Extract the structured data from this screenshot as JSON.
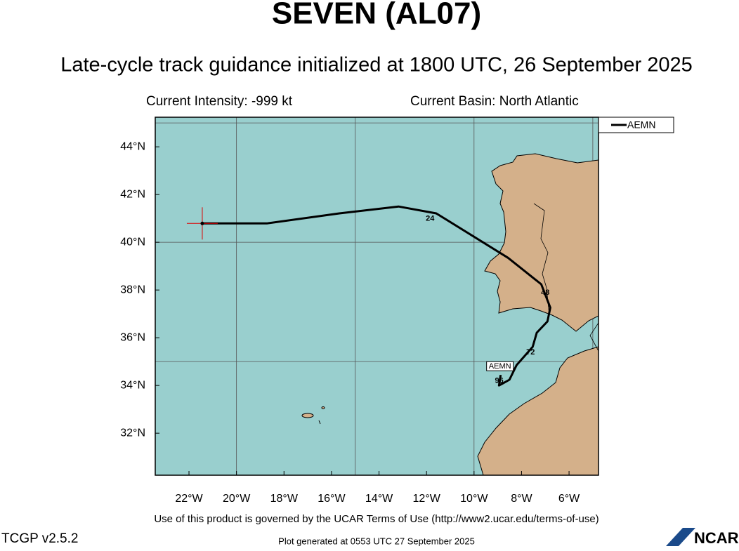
{
  "chart_data": {
    "type": "track",
    "title": "SEVEN (AL07)",
    "subtitle": "Late-cycle track guidance initialized at 1800 UTC, 26 September 2025",
    "intensity_text": "Current Intensity: -999 kt",
    "basin_text": "Current Basin: North Atlantic",
    "xlim": [
      -23.42,
      -4.76
    ],
    "ylim": [
      30.24,
      45.24
    ],
    "xticks": [
      {
        "value": -22,
        "label": "22°W"
      },
      {
        "value": -20,
        "label": "20°W"
      },
      {
        "value": -18,
        "label": "18°W"
      },
      {
        "value": -16,
        "label": "16°W"
      },
      {
        "value": -14,
        "label": "14°W"
      },
      {
        "value": -12,
        "label": "12°W"
      },
      {
        "value": -10,
        "label": "10°W"
      },
      {
        "value": -8,
        "label": "8°W"
      },
      {
        "value": -6,
        "label": "6°W"
      }
    ],
    "yticks": [
      {
        "value": 32,
        "label": "32°N"
      },
      {
        "value": 34,
        "label": "34°N"
      },
      {
        "value": 36,
        "label": "36°N"
      },
      {
        "value": 38,
        "label": "38°N"
      },
      {
        "value": 40,
        "label": "40°N"
      },
      {
        "value": 42,
        "label": "42°N"
      },
      {
        "value": 44,
        "label": "44°N"
      }
    ],
    "grid_lon": [
      -20,
      -15,
      -10,
      -5
    ],
    "grid_lat": [
      35,
      40,
      45
    ],
    "series": [
      {
        "name": "AEMN",
        "color": "#000000",
        "x": [
          -21.44,
          -18.72,
          -15.67,
          -13.18,
          -11.59,
          -8.57,
          -7.17,
          -6.79,
          -6.91,
          -7.36,
          -7.53,
          -8.21,
          -8.51,
          -8.78,
          -8.95,
          -8.88
        ],
        "y": [
          40.79,
          40.79,
          41.21,
          41.5,
          41.21,
          39.35,
          38.24,
          37.26,
          36.68,
          36.21,
          35.62,
          34.85,
          34.24,
          34.09,
          34.0,
          34.44
        ]
      }
    ],
    "hour_labels": {
      "x": [
        -11.85,
        -7.0,
        -7.62,
        -8.94
      ],
      "y": [
        40.98,
        37.88,
        35.38,
        34.2
      ],
      "labels": [
        24,
        48,
        72,
        96
      ]
    },
    "storm_label": "AEMN",
    "terms_text": "Use of this product is governed by the UCAR Terms of Use (http://www2.ucar.edu/terms-of-use)",
    "version_text": "TCGP v2.5.2",
    "generated_text": "Plot generated at 0553 UTC   27 September 2025",
    "logo_text": "NCAR"
  }
}
